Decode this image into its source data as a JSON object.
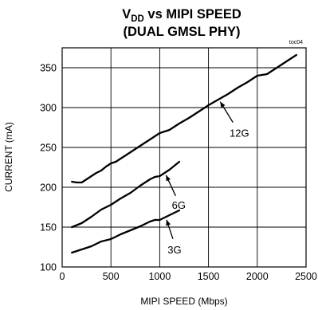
{
  "chart_data": {
    "type": "line",
    "title_main": "V",
    "title_sub": "DD",
    "title_rest": " vs MIPI SPEED",
    "title_line2": "(DUAL GMSL PHY)",
    "tag": "toc04",
    "xlabel": "MIPI SPEED (Mbps)",
    "ylabel": "CURRENT (mA)",
    "xlim": [
      0,
      2500
    ],
    "ylim": [
      100,
      375
    ],
    "xticks": [
      0,
      500,
      1000,
      1500,
      2000,
      2500
    ],
    "yticks": [
      100,
      150,
      200,
      250,
      300,
      350
    ],
    "grid": true,
    "series": [
      {
        "name": "12G",
        "x": [
          100,
          150,
          200,
          250,
          300,
          350,
          400,
          450,
          500,
          550,
          600,
          650,
          700,
          800,
          900,
          1000,
          1100,
          1200,
          1300,
          1400,
          1500,
          1600,
          1700,
          1800,
          1900,
          2000,
          2100,
          2200,
          2300,
          2400
        ],
        "y": [
          207,
          206,
          206,
          210,
          214,
          218,
          221,
          226,
          230,
          232,
          236,
          240,
          244,
          252,
          260,
          268,
          272,
          280,
          287,
          295,
          303,
          310,
          317,
          325,
          332,
          340,
          342,
          350,
          358,
          366
        ]
      },
      {
        "name": "6G",
        "x": [
          100,
          200,
          300,
          400,
          500,
          600,
          700,
          800,
          900,
          950,
          1000,
          1100,
          1200
        ],
        "y": [
          150,
          155,
          163,
          172,
          178,
          186,
          193,
          202,
          210,
          213,
          214,
          222,
          232
        ]
      },
      {
        "name": "3G",
        "x": [
          100,
          200,
          300,
          400,
          500,
          600,
          700,
          800,
          900,
          950,
          1000,
          1100,
          1200
        ],
        "y": [
          118,
          122,
          126,
          132,
          135,
          141,
          146,
          151,
          157,
          159,
          159,
          165,
          171
        ]
      }
    ],
    "annotations": [
      {
        "text": "12G",
        "series": "12G",
        "at_x": 1620
      },
      {
        "text": "6G",
        "series": "6G",
        "at_x": 1065
      },
      {
        "text": "3G",
        "series": "3G",
        "at_x": 1070
      }
    ]
  }
}
